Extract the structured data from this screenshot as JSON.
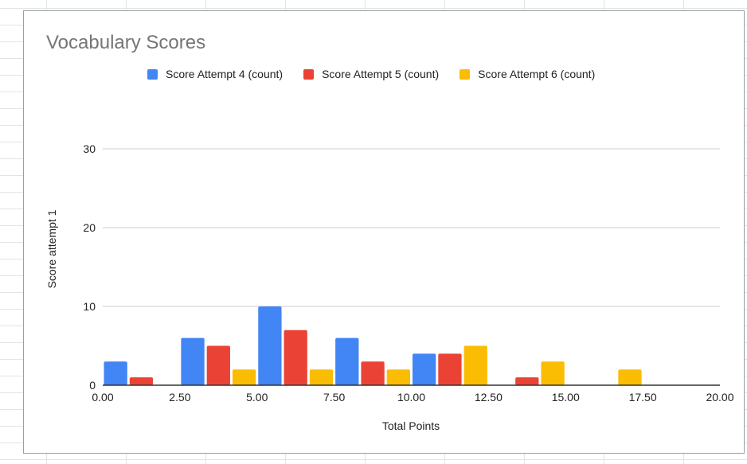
{
  "chart_data": {
    "type": "bar",
    "title": "Vocabulary Scores",
    "xlabel": "Total Points",
    "ylabel": "Score attempt 1",
    "xlim": [
      0,
      20
    ],
    "ylim": [
      0,
      30
    ],
    "x_ticks": [
      "0.00",
      "2.50",
      "5.00",
      "7.50",
      "10.00",
      "12.50",
      "15.00",
      "17.50",
      "20.00"
    ],
    "y_ticks": [
      "0",
      "10",
      "20",
      "30"
    ],
    "grid": true,
    "legend_position": "top",
    "bin_width": 2.5,
    "bin_starts": [
      0,
      2.5,
      5,
      7.5,
      10,
      12.5,
      15,
      17.5
    ],
    "series": [
      {
        "name": "Score Attempt 4 (count)",
        "color": "#4285f4",
        "values": [
          3,
          6,
          10,
          6,
          4,
          0,
          0,
          0
        ]
      },
      {
        "name": "Score Attempt 5 (count)",
        "color": "#ea4335",
        "values": [
          1,
          5,
          7,
          3,
          4,
          1,
          0,
          0
        ]
      },
      {
        "name": "Score Attempt 6 (count)",
        "color": "#fbbc04",
        "values": [
          0,
          2,
          2,
          2,
          5,
          3,
          2,
          0
        ]
      }
    ]
  }
}
